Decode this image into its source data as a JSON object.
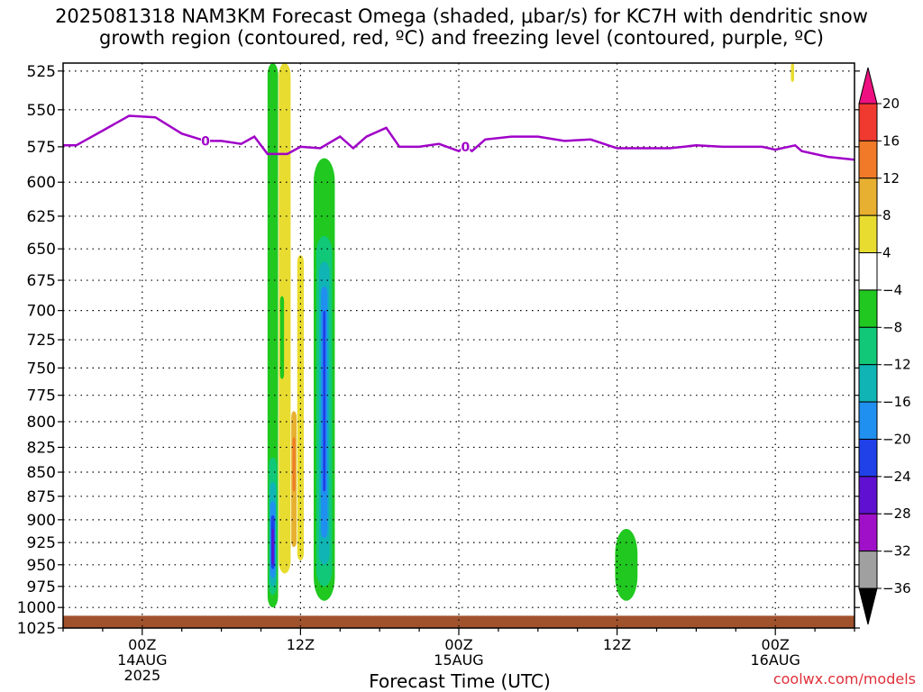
{
  "title": {
    "line1": "2025081318 NAM3KM Forecast Omega (shaded, μbar/s) for KC7H with dendritic snow",
    "line2": "growth region (contoured, red, ºC) and freezing level (contoured, purple, ºC)"
  },
  "credit": "coolwx.com/models",
  "chart_data": {
    "type": "heatmap",
    "xlabel": "Forecast Time (UTC)",
    "x_ticks": [
      {
        "hour": 6,
        "lines": [
          "00Z",
          "14AUG",
          "2025"
        ]
      },
      {
        "hour": 18,
        "lines": [
          "12Z"
        ]
      },
      {
        "hour": 30,
        "lines": [
          "00Z",
          "15AUG"
        ]
      },
      {
        "hour": 42,
        "lines": [
          "12Z"
        ]
      },
      {
        "hour": 54,
        "lines": [
          "00Z",
          "16AUG"
        ]
      }
    ],
    "xlim": [
      0,
      60
    ],
    "ylabel": "",
    "y_ticks": [
      525,
      550,
      575,
      600,
      625,
      650,
      675,
      700,
      725,
      750,
      775,
      800,
      825,
      850,
      875,
      900,
      925,
      950,
      975,
      1000,
      1025
    ],
    "ylim": [
      1025,
      520
    ],
    "y_scale": "log-pressure",
    "grid": true,
    "colorbar": {
      "levels": [
        20,
        16,
        12,
        8,
        4,
        -4,
        -8,
        -12,
        -16,
        -20,
        -24,
        -28,
        -32,
        -36
      ],
      "colors": [
        "#ee1080",
        "#f03a30",
        "#f07a28",
        "#e8b030",
        "#e8dc30",
        "#ffffff",
        "#20c820",
        "#10c878",
        "#10b4b4",
        "#2090f0",
        "#2040e8",
        "#6010d0",
        "#a010c8",
        "#a0a0a0",
        "#000000"
      ]
    },
    "freezing_level": {
      "label": "0",
      "color": "#a000c8",
      "points": [
        [
          0,
          574
        ],
        [
          1,
          574
        ],
        [
          3,
          564
        ],
        [
          5,
          554
        ],
        [
          7,
          555
        ],
        [
          9,
          566
        ],
        [
          10.8,
          571
        ],
        [
          12,
          571
        ],
        [
          13.5,
          573
        ],
        [
          14.5,
          568
        ],
        [
          15.5,
          580
        ],
        [
          17,
          580
        ],
        [
          18,
          575
        ],
        [
          19.5,
          576
        ],
        [
          21,
          568
        ],
        [
          22,
          576
        ],
        [
          23,
          568
        ],
        [
          24.5,
          562
        ],
        [
          25.5,
          575
        ],
        [
          27,
          575
        ],
        [
          28.5,
          573
        ],
        [
          30,
          578
        ],
        [
          30.5,
          575
        ],
        [
          31,
          578
        ],
        [
          32,
          570
        ],
        [
          34,
          568
        ],
        [
          36,
          568
        ],
        [
          38,
          571
        ],
        [
          40,
          570
        ],
        [
          42,
          576
        ],
        [
          44,
          576
        ],
        [
          46,
          576
        ],
        [
          48,
          574
        ],
        [
          50,
          575
        ],
        [
          53,
          575
        ],
        [
          54,
          577
        ],
        [
          55.5,
          574
        ],
        [
          56,
          578
        ],
        [
          58,
          582
        ],
        [
          60,
          584
        ]
      ]
    },
    "omega_regions": [
      {
        "value": -6,
        "color": "#20c820",
        "hour": 15.9,
        "width": 0.8,
        "top": 520,
        "bottom": 1000
      },
      {
        "value": -10,
        "color": "#10c878",
        "hour": 15.9,
        "width": 0.6,
        "top": 835,
        "bottom": 985
      },
      {
        "value": -14,
        "color": "#10b4b4",
        "hour": 15.9,
        "width": 0.5,
        "top": 860,
        "bottom": 975
      },
      {
        "value": -18,
        "color": "#2090f0",
        "hour": 15.9,
        "width": 0.4,
        "top": 880,
        "bottom": 965
      },
      {
        "value": -22,
        "color": "#2040e8",
        "hour": 15.9,
        "width": 0.28,
        "top": 895,
        "bottom": 955
      },
      {
        "value": -26,
        "color": "#6010d0",
        "hour": 15.9,
        "width": 0.16,
        "top": 910,
        "bottom": 950
      },
      {
        "value": 6,
        "color": "#e8dc30",
        "hour": 16.8,
        "width": 0.9,
        "top": 520,
        "bottom": 960
      },
      {
        "value": -6,
        "color": "#20c820",
        "hour": 16.6,
        "width": 0.3,
        "top": 688,
        "bottom": 760
      },
      {
        "value": 6,
        "color": "#e8dc30",
        "hour": 18.0,
        "width": 0.5,
        "top": 655,
        "bottom": 945
      },
      {
        "value": 10,
        "color": "#e8b030",
        "hour": 17.5,
        "width": 0.4,
        "top": 790,
        "bottom": 930
      },
      {
        "value": 14,
        "color": "#f07a28",
        "hour": 17.5,
        "width": 0.2,
        "top": 815,
        "bottom": 870
      },
      {
        "value": -6,
        "color": "#20c820",
        "hour": 19.8,
        "width": 1.6,
        "top": 583,
        "bottom": 992
      },
      {
        "value": -10,
        "color": "#10c878",
        "hour": 19.8,
        "width": 1.2,
        "top": 640,
        "bottom": 975
      },
      {
        "value": -14,
        "color": "#10b4b4",
        "hour": 19.8,
        "width": 0.8,
        "top": 660,
        "bottom": 950
      },
      {
        "value": -18,
        "color": "#2090f0",
        "hour": 19.8,
        "width": 0.5,
        "top": 680,
        "bottom": 920
      },
      {
        "value": -22,
        "color": "#2040e8",
        "hour": 19.8,
        "width": 0.2,
        "top": 700,
        "bottom": 870
      },
      {
        "value": -6,
        "color": "#20c820",
        "hour": 42.7,
        "width": 1.7,
        "top": 910,
        "bottom": 992
      },
      {
        "value": 6,
        "color": "#e8dc30",
        "hour": 55.3,
        "width": 0.25,
        "top": 520,
        "bottom": 532
      }
    ],
    "terrain": {
      "color": "#a0522d",
      "surface_pressure": 1010
    }
  }
}
